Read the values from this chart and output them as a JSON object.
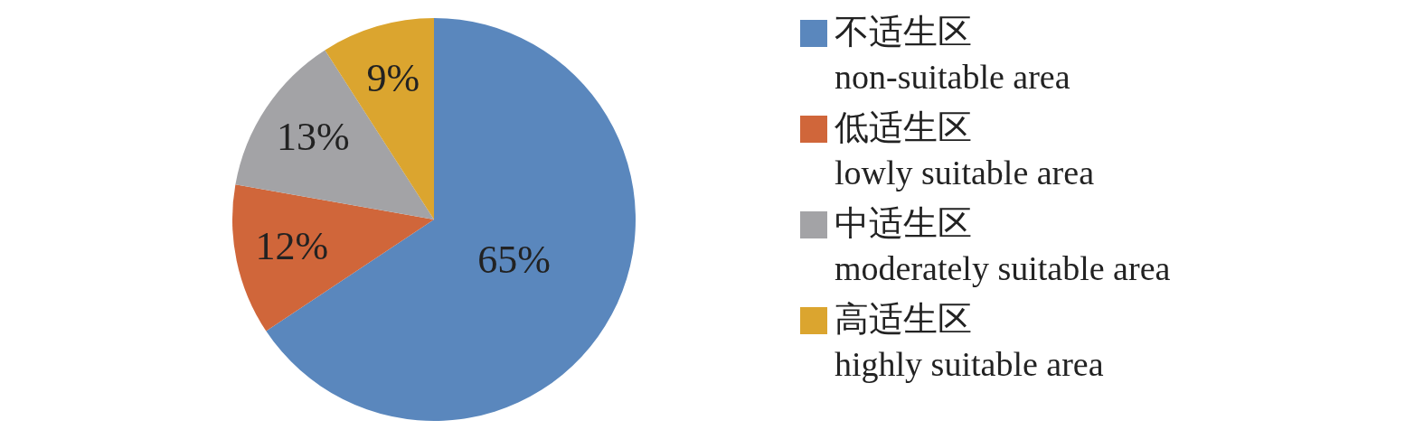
{
  "chart_data": {
    "type": "pie",
    "categories": [
      "不适生区\nnon-suitable area",
      "低适生区\nlowly suitable area",
      "中适生区\nmoderately suitable area",
      "高适生区\nhighly suitable area"
    ],
    "values": [
      65,
      12,
      13,
      9
    ],
    "colors": [
      "#5a87bd",
      "#d0663a",
      "#a3a3a6",
      "#dba52f"
    ],
    "value_labels": [
      "65%",
      "12%",
      "13%",
      "9%"
    ],
    "legend": "right"
  }
}
